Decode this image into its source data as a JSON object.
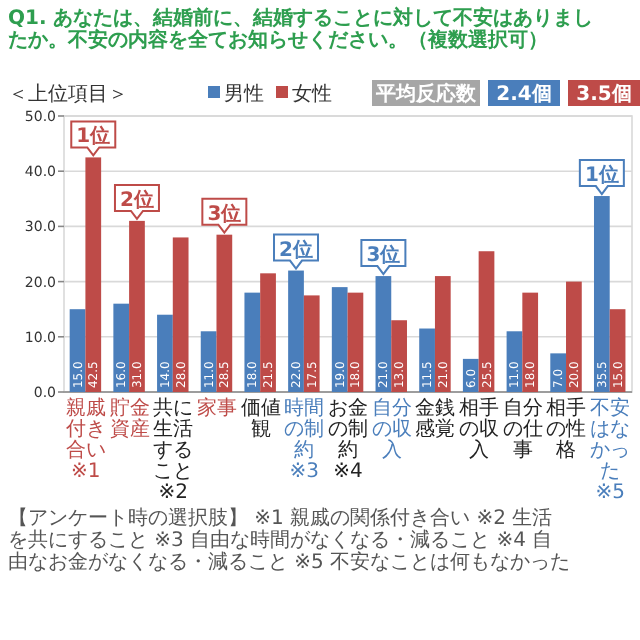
{
  "chart_data": {
    "type": "bar",
    "title": "Q1. あなたは、結婚前に、結婚することに対して不安はありましたか。不安の内容を全てお知らせください。（複数選択可）",
    "categories": [
      "親戚付き合い※1",
      "貯金資産",
      "共に生活すること※2",
      "家事",
      "価値観",
      "時間の制約※3",
      "お金の制約※4",
      "自分の収入",
      "金銭感覚",
      "相手の収入",
      "自分の仕事",
      "相手の性格",
      "不安はなかった※5"
    ],
    "series": [
      {
        "name": "男性",
        "color": "#4a7ebb",
        "values": [
          15.0,
          16.0,
          14.0,
          11.0,
          18.0,
          22.0,
          19.0,
          21.0,
          11.5,
          6.0,
          11.0,
          7.0,
          35.5
        ],
        "value_labels": [
          "15.0",
          "16.0",
          "14.0",
          "11.0",
          "18.0",
          "22.0",
          "19.0",
          "21.0",
          "11.5",
          "6.0",
          "11.0",
          "7.0",
          "35.5"
        ]
      },
      {
        "name": "女性",
        "color": "#be4b48",
        "values": [
          42.5,
          31.0,
          28.0,
          28.5,
          21.5,
          17.5,
          18.0,
          13.0,
          21.0,
          25.5,
          18.0,
          20.0,
          15.0
        ],
        "value_labels": [
          "42.5",
          "31.0",
          "28.0",
          "28.5",
          "21.5",
          "17.5",
          "18.0",
          "13.0",
          "21.0",
          "25.5",
          "18.0",
          "20.0",
          "15.0"
        ]
      }
    ],
    "ylim": [
      0,
      50
    ],
    "yticks": [
      {
        "value": 0,
        "label": "0.0"
      },
      {
        "value": 10,
        "label": "10.0"
      },
      {
        "value": 20,
        "label": "20.0"
      },
      {
        "value": 30,
        "label": "30.0"
      },
      {
        "value": 40,
        "label": "40.0"
      },
      {
        "value": 50,
        "label": "50.0"
      }
    ],
    "grid": "y",
    "legend": "top",
    "annotations": [
      "＜上位項目＞",
      "平均反応数",
      "2.4個",
      "3.5個",
      "【アンケート時の選択肢】 ※1 親戚の関係付き合い ※2 生活を共にすること ※3 自由な時間がなくなる・減ること ※4 自由なお金がなくなる・減ること ※5 不安なことは何もなかった",
      {
        "text": "1位",
        "x": "親戚付き合い※1",
        "y": 42.5
      },
      {
        "text": "2位",
        "x": "貯金資産",
        "y": 31.0
      },
      {
        "text": "3位",
        "x": "家事",
        "y": 28.5
      },
      {
        "text": "2位",
        "x": "時間の制約※3",
        "y": 22.0
      },
      {
        "text": "3位",
        "x": "自分の収入",
        "y": 21.0
      },
      {
        "text": "1位",
        "x": "不安はなかった※5",
        "y": 35.5
      }
    ]
  }
}
